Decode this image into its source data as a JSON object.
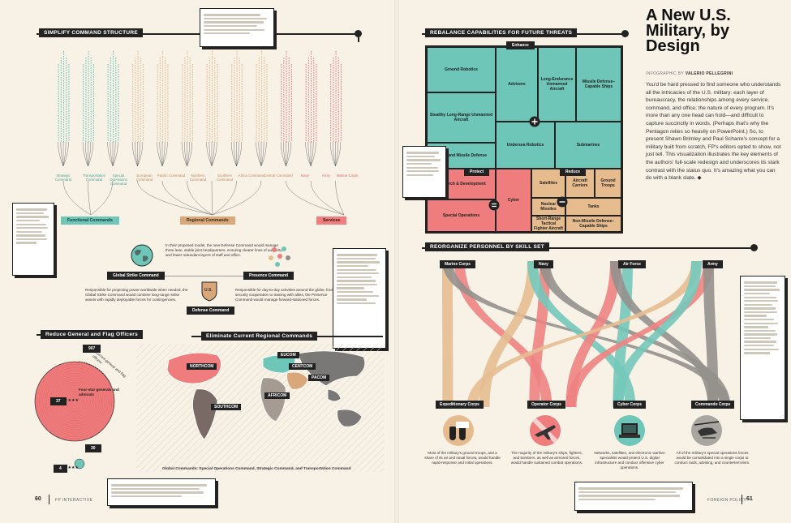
{
  "article": {
    "title": "A New U.S. Military, by Design",
    "byline_prefix": "INFOGRAPHIC BY",
    "byline_name": "VALERIO PELLEGRINI",
    "body": "You'd be hard pressed to find someone who understands all the intricacies of the U.S. military: each layer of bureaucracy, the relationships among every service, command, and office; the nature of every program. It's more than any one head can hold—and difficult to capture succinctly in words. (Perhaps that's why the Pentagon relies so heavily on PowerPoint.) So, to present Shawn Brimley and Paul Scharre's concept for a military built from scratch, FP's editors opted to show, not just tell. This visualization illustrates the key elements of the authors' full-scale redesign and underscores its stark contrast with the status quo. It's amazing what you can do with a blank slate."
  },
  "folio": {
    "left_page": "60",
    "left_label": "FP  INTERACTIVE",
    "right_label": "FOREIGN POLICY",
    "right_page": "61"
  },
  "sections": {
    "command": "SIMPLIFY COMMAND STRUCTURE",
    "rebalance": "REBALANCE CAPABILITIES FOR FUTURE THREATS",
    "personnel": "REORGANIZE PERSONNEL BY SKILL SET",
    "generals": "Reduce General and Flag Officers",
    "regional": "Eliminate Current Regional Commands"
  },
  "command_tree": {
    "functional_labels": [
      "Strategic Command",
      "Transportation Command",
      "Special Operations Command"
    ],
    "regional_labels": [
      "European Command",
      "Pacific Command",
      "Northern Command",
      "Southern Command",
      "Africa Command",
      "Central Command"
    ],
    "service_labels": [
      "Navy",
      "Army",
      "Marine Corps"
    ],
    "groups": [
      "Functional Commands",
      "Regional Commands",
      "Services"
    ]
  },
  "new_commands": {
    "intro": "In their proposed model, the new Defense Command would manage three lean, stable joint headquarters, ensuring clearer lines of authority and fewer redundant layers of staff and office.",
    "global_strike": "Global Strike Command",
    "presence": "Presence Command",
    "defense": "Defense Command",
    "us_badge": "U.S.",
    "global_strike_text": "Responsible for projecting power worldwide when needed, the Global Strike Command would combine long-range strike assets with rapidly deployable forces for contingencies.",
    "presence_text": "Responsible for day-to-day activities around the globe, from security cooperation to training with allies, the Presence Command would manage forward-stationed forces."
  },
  "generals": {
    "current": "907",
    "current_label": "Current general and flag officers",
    "four_star_label": "Four-star generals and admirals",
    "four_star_now": "37",
    "proposed": "30",
    "proposed_four_star": "4"
  },
  "map": {
    "labels": [
      "NORTHCOM",
      "EUCOM",
      "CENTCOM",
      "PACOM",
      "AFRICOM",
      "SOUTHCOM"
    ],
    "caption": "Global Commands: Special Operations Command, Strategic Command, and Transportation Command"
  },
  "treemap": {
    "enhance": "Enhance",
    "protect": "Protect",
    "reduce": "Reduce",
    "cells": {
      "ground_robotics": "Ground Robotics",
      "advisors": "Advisors",
      "long_endurance": "Long-Endurance Unmanned Aircraft",
      "missile_defense_ships": "Missile Defense–Capable Ships",
      "stealth_aircraft": "Stealthy Long-Range Unmanned Aircraft",
      "homeland_missile": "Homeland Missile Defense",
      "undersea_robotics": "Undersea Robotics",
      "submarines": "Submarines",
      "research": "Research & Development",
      "special_ops": "Special Operations",
      "cyber": "Cyber",
      "satellites": "Satellites",
      "aircraft_carriers": "Aircraft Carriers",
      "ground_troops": "Ground Troops",
      "nuclear_missiles": "Nuclear Missiles",
      "tanks": "Tanks",
      "short_range_fighter": "Short-Range Tactical Fighter Aircraft",
      "non_missile_ships": "Non-Missile Defense–Capable Ships"
    }
  },
  "personnel": {
    "branches": [
      "Marine Corps",
      "Navy",
      "Air Force",
      "Army"
    ],
    "corps": [
      "Expeditionary Corps",
      "Operator Corps",
      "Cyber Corps",
      "Commando Corps"
    ],
    "corps_text": [
      "Most of the military's ground troops, and a share of its air and naval forces, would handle rapid-response and initial operations.",
      "The majority of the military's ships, fighters, and bombers, as well as armored forces, would handle sustained combat operations.",
      "Networks, satellites, and electronic warfare specialists would protect U.S. digital infrastructure and conduct offensive cyber operations.",
      "All of the military's special operations forces would be consolidated into a single corps to conduct raids, advising, and counterterrorism."
    ]
  },
  "colors": {
    "teal": "#6ec6b8",
    "pink": "#ef7d7d",
    "tan": "#e6bb8e",
    "gray": "#8f8d8a",
    "ink": "#222222",
    "paper": "#f7f1e6"
  }
}
